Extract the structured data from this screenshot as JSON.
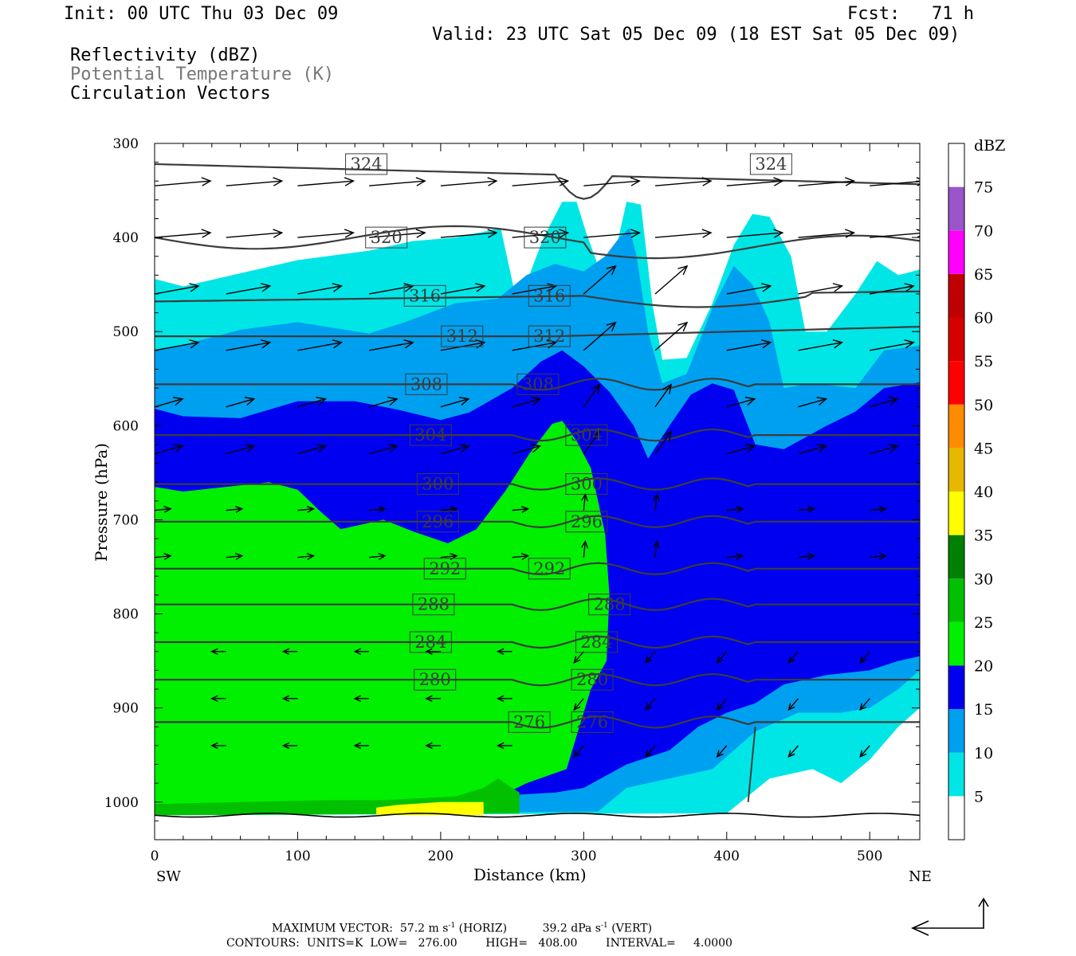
{
  "header": {
    "init": "Init: 00 UTC Thu 03 Dec 09",
    "fcst": "Fcst:   71 h",
    "valid": "Valid: 23 UTC Sat 05 Dec 09 (18 EST Sat 05 Dec 09)",
    "field1": "Reflectivity (dBZ)",
    "field2": "Potential Temperature (K)",
    "field3": "Circulation Vectors"
  },
  "footer": {
    "maxvec_label": "MAXIMUM VECTOR:",
    "maxvec_horiz_value": "57.2 m s",
    "maxvec_horiz_unit": "(HORIZ)",
    "maxvec_vert_value": "39.2 dPa s",
    "maxvec_vert_unit": "(VERT)",
    "exp": "-1",
    "contours": "CONTOURS:  UNITS=K  LOW=   276.00        HIGH=   408.00        INTERVAL=     4.0000"
  },
  "chart_data": {
    "type": "contour",
    "xlabel": "Distance (km)",
    "ylabel": "Pressure (hPa)",
    "x_range": [
      0,
      535
    ],
    "y_range": [
      300,
      1040
    ],
    "x_ticks": [
      0,
      100,
      200,
      300,
      400,
      500
    ],
    "y_ticks": [
      300,
      400,
      500,
      600,
      700,
      800,
      900,
      1000
    ],
    "x_end_labels": {
      "left": "SW",
      "right": "NE"
    },
    "colorbar": {
      "unit": "dBZ",
      "levels": [
        5,
        10,
        15,
        20,
        25,
        30,
        35,
        40,
        45,
        50,
        55,
        60,
        65,
        70,
        75
      ],
      "colors": [
        "#ffffff",
        "#00e6e6",
        "#00a0f0",
        "#0000f0",
        "#00f000",
        "#00c000",
        "#008000",
        "#ffff00",
        "#e6b800",
        "#ff8c00",
        "#ff0000",
        "#d60000",
        "#c00000",
        "#ff00ff",
        "#9955c9",
        "#ffffff"
      ]
    },
    "theta_contours": [
      {
        "value": 324,
        "label_x": [
          148,
          431
        ]
      },
      {
        "value": 320,
        "label_x": [
          162,
          273
        ]
      },
      {
        "value": 316,
        "label_x": [
          189,
          276
        ]
      },
      {
        "value": 312,
        "label_x": [
          215,
          276
        ]
      },
      {
        "value": 308,
        "label_x": [
          190,
          268
        ]
      },
      {
        "value": 304,
        "label_x": [
          193,
          302
        ]
      },
      {
        "value": 300,
        "label_x": [
          198,
          302
        ]
      },
      {
        "value": 296,
        "label_x": [
          198,
          302
        ]
      },
      {
        "value": 292,
        "label_x": [
          203,
          276
        ]
      },
      {
        "value": 288,
        "label_x": [
          195,
          318
        ]
      },
      {
        "value": 284,
        "label_x": [
          193,
          309
        ]
      },
      {
        "value": 280,
        "label_x": [
          196,
          306
        ]
      },
      {
        "value": 276,
        "label_x": [
          262,
          306
        ]
      }
    ],
    "contour_units": "K",
    "contour_low": 276.0,
    "contour_high": 408.0,
    "contour_interval": 4.0,
    "max_vector_horiz_m_s": 57.2,
    "max_vector_vert_dPa_s": 39.2
  }
}
